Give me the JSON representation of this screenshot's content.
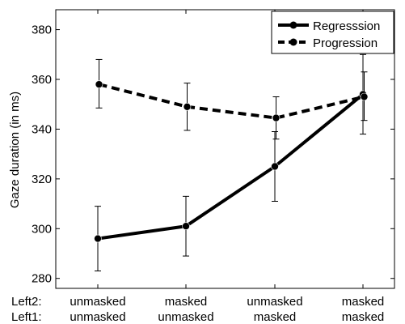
{
  "chart_data": {
    "type": "line",
    "ylabel": "Gaze duration (in ms)",
    "ylim": [
      276,
      388
    ],
    "yticks": [
      280,
      300,
      320,
      340,
      360,
      380
    ],
    "row_labels": [
      "Left2:",
      "Left1:"
    ],
    "categories": [
      {
        "left2": "unmasked",
        "left1": "unmasked"
      },
      {
        "left2": "masked",
        "left1": "unmasked"
      },
      {
        "left2": "unmasked",
        "left1": "masked"
      },
      {
        "left2": "masked",
        "left1": "masked"
      }
    ],
    "series": [
      {
        "name": "Regresssion",
        "style": "solid",
        "values": [
          296,
          301,
          325,
          354
        ],
        "error_low": [
          283,
          289,
          311,
          338
        ],
        "error_high": [
          309,
          313,
          339,
          370
        ]
      },
      {
        "name": "Progression",
        "style": "dashed",
        "values": [
          358,
          349,
          344.5,
          353
        ],
        "error_low": [
          348.5,
          339.5,
          336,
          343.5
        ],
        "error_high": [
          368,
          358.5,
          353,
          363
        ]
      }
    ],
    "legend_position": "top-right",
    "grid": false,
    "color": "#000000"
  }
}
